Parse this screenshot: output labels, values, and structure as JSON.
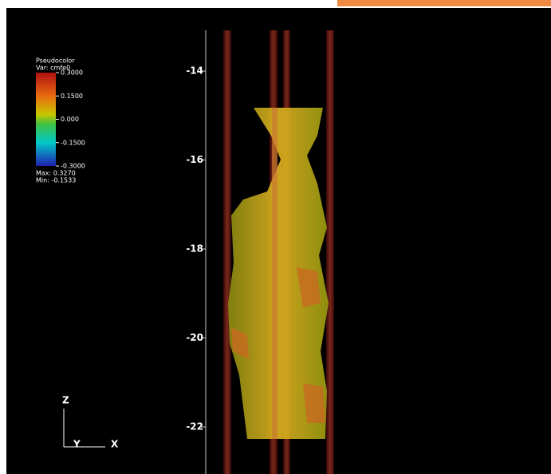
{
  "legend": {
    "title": "Pseudocolor",
    "variable": "Var: cmfe0",
    "ticks": [
      "0.3000",
      "0.1500",
      "0.000",
      "-0.1500",
      "-0.3000"
    ],
    "max": "Max:  0.3270",
    "min": "Min: -0.1533"
  },
  "axis": {
    "ticks": [
      "-14",
      "-16",
      "-18",
      "-20",
      "-22"
    ]
  },
  "triad": {
    "z": "Z",
    "y": "Y",
    "x": "X"
  }
}
